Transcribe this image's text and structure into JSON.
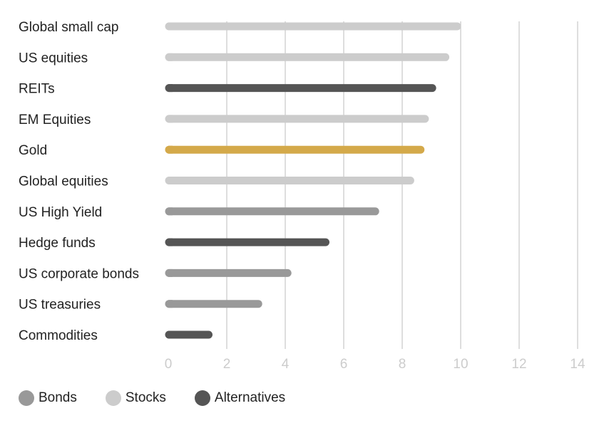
{
  "chart_data": {
    "type": "bar",
    "orientation": "horizontal",
    "title": "",
    "xlabel": "",
    "ylabel": "",
    "xlim": [
      0,
      14
    ],
    "x_ticks": [
      "0",
      "2",
      "4",
      "6",
      "8",
      "10",
      "12",
      "14"
    ],
    "grid": true,
    "legend_position": "bottom-left",
    "categories": [
      "Global small cap",
      "US equities",
      "REITs",
      "EM Equities",
      "Gold",
      "Global equities",
      "US High Yield",
      "Hedge funds",
      "US corporate bonds",
      "US treasuries",
      "Commodities"
    ],
    "values": [
      10.0,
      9.6,
      9.15,
      8.9,
      8.75,
      8.4,
      7.2,
      5.5,
      4.2,
      3.2,
      1.5
    ],
    "groups": [
      "Stocks",
      "Stocks",
      "Alternatives",
      "Stocks",
      "Gold",
      "Stocks",
      "Bonds",
      "Alternatives",
      "Bonds",
      "Bonds",
      "Alternatives"
    ],
    "colors": {
      "Bonds": "#999999",
      "Stocks": "#cccccc",
      "Alternatives": "#555555",
      "Gold": "#d4a94a",
      "grid": "#cccccc",
      "tick_label": "#cccccc",
      "category_label": "#222222"
    },
    "legend": [
      {
        "label": "Bonds",
        "color": "#999999"
      },
      {
        "label": "Stocks",
        "color": "#cccccc"
      },
      {
        "label": "Alternatives",
        "color": "#555555"
      }
    ]
  }
}
